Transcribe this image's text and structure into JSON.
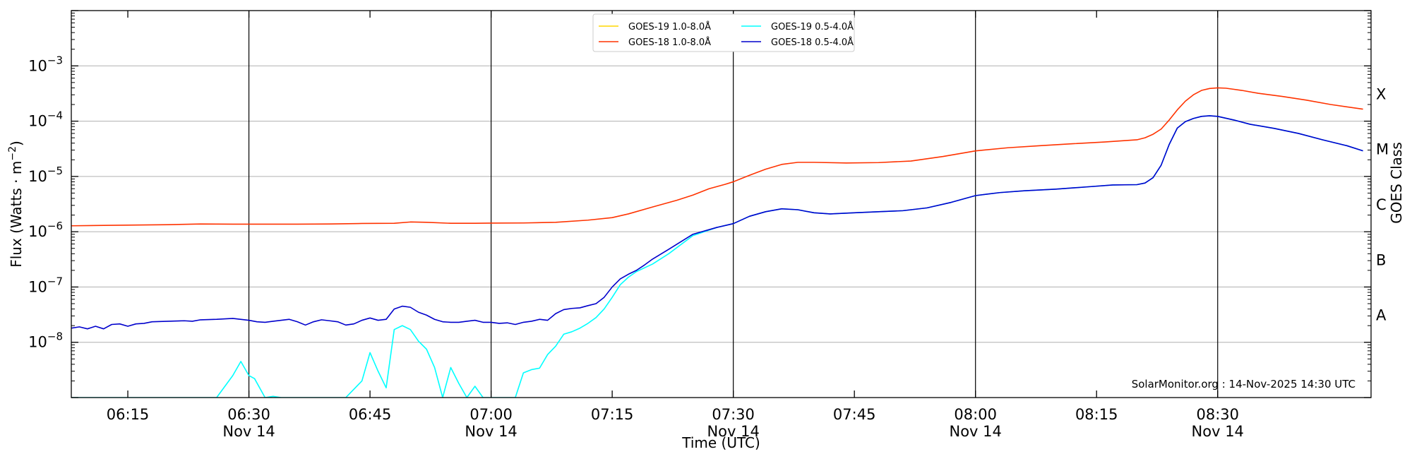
{
  "chart_data": {
    "type": "line",
    "xlabel": "Time (UTC)",
    "ylabel": "Flux (Watts · m⁻²)",
    "ylabel_parts": {
      "base": "Flux (Watts · m",
      "exp": "−2",
      "end": ")"
    },
    "y2label": "GOES Class",
    "yscale": "log",
    "xlim": [
      "06:08",
      "08:49"
    ],
    "ylim": [
      1e-09,
      0.01
    ],
    "grid": {
      "horizontal": true,
      "vertical_lines_at": [
        "06:30",
        "07:00",
        "07:30",
        "08:00",
        "08:30"
      ]
    },
    "legend_placement": "top-center",
    "credit": "SolarMonitor.org : 14-Nov-2025 14:30 UTC",
    "x_ticks": [
      {
        "t": "06:15",
        "label": "06:15",
        "sub": ""
      },
      {
        "t": "06:30",
        "label": "06:30",
        "sub": "Nov 14"
      },
      {
        "t": "06:45",
        "label": "06:45",
        "sub": ""
      },
      {
        "t": "07:00",
        "label": "07:00",
        "sub": "Nov 14"
      },
      {
        "t": "07:15",
        "label": "07:15",
        "sub": ""
      },
      {
        "t": "07:30",
        "label": "07:30",
        "sub": "Nov 14"
      },
      {
        "t": "07:45",
        "label": "07:45",
        "sub": ""
      },
      {
        "t": "08:00",
        "label": "08:00",
        "sub": "Nov 14"
      },
      {
        "t": "08:15",
        "label": "08:15",
        "sub": ""
      },
      {
        "t": "08:30",
        "label": "08:30",
        "sub": "Nov 14"
      }
    ],
    "y_ticks": [
      {
        "value": 1e-08,
        "mant": "10",
        "exp": "−8"
      },
      {
        "value": 1e-07,
        "mant": "10",
        "exp": "−7"
      },
      {
        "value": 1e-06,
        "mant": "10",
        "exp": "−6"
      },
      {
        "value": 1e-05,
        "mant": "10",
        "exp": "−5"
      },
      {
        "value": 0.0001,
        "mant": "10",
        "exp": "−4"
      },
      {
        "value": 0.001,
        "mant": "10",
        "exp": "−3"
      }
    ],
    "goes_classes": [
      {
        "label": "A",
        "value": 3.16e-08
      },
      {
        "label": "B",
        "value": 3.16e-07
      },
      {
        "label": "C",
        "value": 3.16e-06
      },
      {
        "label": "M",
        "value": 3.16e-05
      },
      {
        "label": "X",
        "value": 0.000316
      }
    ],
    "series": [
      {
        "name": "GOES-19 1.0-8.0Å",
        "color": "#FFD700",
        "points": []
      },
      {
        "name": "GOES-19 0.5-4.0Å",
        "color": "#00FFFF",
        "points": [
          [
            "06:08",
            1e-09
          ],
          [
            "06:26",
            1e-09
          ],
          [
            "06:28",
            2.5e-09
          ],
          [
            "06:29",
            4.5e-09
          ],
          [
            "06:30",
            2.5e-09
          ],
          [
            "06:30.7",
            2.2e-09
          ],
          [
            "06:32",
            1e-09
          ],
          [
            "06:33",
            1.05e-09
          ],
          [
            "06:34",
            1e-09
          ],
          [
            "06:42",
            1e-09
          ],
          [
            "06:44",
            2e-09
          ],
          [
            "06:45",
            6.5e-09
          ],
          [
            "06:46",
            3e-09
          ],
          [
            "06:47",
            1.5e-09
          ],
          [
            "06:48",
            1.7e-08
          ],
          [
            "06:49",
            2e-08
          ],
          [
            "06:50",
            1.7e-08
          ],
          [
            "06:51",
            1.05e-08
          ],
          [
            "06:52",
            7.5e-09
          ],
          [
            "06:53",
            3.5e-09
          ],
          [
            "06:54",
            1e-09
          ],
          [
            "06:55",
            3.5e-09
          ],
          [
            "06:56",
            1.8e-09
          ],
          [
            "06:57",
            1e-09
          ],
          [
            "06:58",
            1.6e-09
          ],
          [
            "06:59",
            1e-09
          ],
          [
            "07:02",
            1e-09
          ],
          [
            "07:03",
            1e-09
          ],
          [
            "07:04",
            2.8e-09
          ],
          [
            "07:05",
            3.2e-09
          ],
          [
            "07:06",
            3.4e-09
          ],
          [
            "07:07",
            6e-09
          ],
          [
            "07:08",
            8.5e-09
          ],
          [
            "07:09",
            1.4e-08
          ],
          [
            "07:10",
            1.55e-08
          ],
          [
            "07:11",
            1.8e-08
          ],
          [
            "07:12",
            2.2e-08
          ],
          [
            "07:13",
            2.8e-08
          ],
          [
            "07:14",
            4e-08
          ],
          [
            "07:15",
            6.5e-08
          ],
          [
            "07:16",
            1.1e-07
          ],
          [
            "07:17",
            1.5e-07
          ],
          [
            "07:18",
            1.9e-07
          ],
          [
            "07:20",
            2.6e-07
          ],
          [
            "07:22",
            4e-07
          ],
          [
            "07:25",
            8.5e-07
          ],
          [
            "07:28",
            1.2e-06
          ],
          [
            "07:30",
            1.4e-06
          ],
          [
            "07:32",
            1.9e-06
          ],
          [
            "07:34",
            2.3e-06
          ],
          [
            "07:36",
            2.6e-06
          ],
          [
            "07:38",
            2.5e-06
          ],
          [
            "07:40",
            2.2e-06
          ],
          [
            "07:42",
            2.1e-06
          ],
          [
            "07:45",
            2.2e-06
          ],
          [
            "07:48",
            2.3e-06
          ],
          [
            "07:51",
            2.4e-06
          ],
          [
            "07:54",
            2.7e-06
          ],
          [
            "07:57",
            3.4e-06
          ],
          [
            "08:00",
            4.5e-06
          ],
          [
            "08:03",
            5.1e-06
          ],
          [
            "08:06",
            5.5e-06
          ],
          [
            "08:10",
            5.9e-06
          ],
          [
            "08:14",
            6.5e-06
          ],
          [
            "08:17",
            7e-06
          ],
          [
            "08:20",
            7.1e-06
          ],
          [
            "08:21",
            7.6e-06
          ],
          [
            "08:22",
            9.5e-06
          ],
          [
            "08:23",
            1.6e-05
          ],
          [
            "08:24",
            3.8e-05
          ],
          [
            "08:25",
            7.5e-05
          ],
          [
            "08:26",
            9.8e-05
          ],
          [
            "08:27",
            0.000112
          ],
          [
            "08:28",
            0.000122
          ],
          [
            "08:29",
            0.000125
          ],
          [
            "08:30",
            0.000122
          ],
          [
            "08:32",
            0.000105
          ],
          [
            "08:34",
            8.8e-05
          ],
          [
            "08:37",
            7.4e-05
          ],
          [
            "08:40",
            6e-05
          ],
          [
            "08:43",
            4.6e-05
          ],
          [
            "08:46",
            3.6e-05
          ],
          [
            "08:48",
            2.9e-05
          ]
        ]
      },
      {
        "name": "GOES-18 1.0-8.0Å",
        "color": "#FF3300",
        "points": [
          [
            "06:08",
            1.28e-06
          ],
          [
            "06:12",
            1.3e-06
          ],
          [
            "06:16",
            1.32e-06
          ],
          [
            "06:20",
            1.34e-06
          ],
          [
            "06:24",
            1.38e-06
          ],
          [
            "06:28",
            1.37e-06
          ],
          [
            "06:32",
            1.37e-06
          ],
          [
            "06:36",
            1.37e-06
          ],
          [
            "06:40",
            1.38e-06
          ],
          [
            "06:44",
            1.41e-06
          ],
          [
            "06:48",
            1.42e-06
          ],
          [
            "06:50",
            1.5e-06
          ],
          [
            "06:52",
            1.48e-06
          ],
          [
            "06:55",
            1.42e-06
          ],
          [
            "06:58",
            1.42e-06
          ],
          [
            "07:00",
            1.43e-06
          ],
          [
            "07:04",
            1.44e-06
          ],
          [
            "07:08",
            1.48e-06
          ],
          [
            "07:12",
            1.62e-06
          ],
          [
            "07:15",
            1.8e-06
          ],
          [
            "07:17",
            2.1e-06
          ],
          [
            "07:20",
            2.8e-06
          ],
          [
            "07:23",
            3.7e-06
          ],
          [
            "07:25",
            4.6e-06
          ],
          [
            "07:27",
            6e-06
          ],
          [
            "07:29",
            7.2e-06
          ],
          [
            "07:30",
            8e-06
          ],
          [
            "07:32",
            1.05e-05
          ],
          [
            "07:34",
            1.35e-05
          ],
          [
            "07:36",
            1.65e-05
          ],
          [
            "07:38",
            1.8e-05
          ],
          [
            "07:40",
            1.8e-05
          ],
          [
            "07:44",
            1.75e-05
          ],
          [
            "07:48",
            1.78e-05
          ],
          [
            "07:52",
            1.9e-05
          ],
          [
            "07:56",
            2.3e-05
          ],
          [
            "08:00",
            2.9e-05
          ],
          [
            "08:04",
            3.3e-05
          ],
          [
            "08:08",
            3.6e-05
          ],
          [
            "08:12",
            3.9e-05
          ],
          [
            "08:16",
            4.2e-05
          ],
          [
            "08:20",
            4.6e-05
          ],
          [
            "08:21",
            5e-05
          ],
          [
            "08:22",
            5.8e-05
          ],
          [
            "08:23",
            7.2e-05
          ],
          [
            "08:24",
            0.000105
          ],
          [
            "08:25",
            0.00016
          ],
          [
            "08:26",
            0.00023
          ],
          [
            "08:27",
            0.0003
          ],
          [
            "08:28",
            0.00036
          ],
          [
            "08:29",
            0.00039
          ],
          [
            "08:30",
            0.0004
          ],
          [
            "08:31",
            0.000395
          ],
          [
            "08:33",
            0.00036
          ],
          [
            "08:35",
            0.00032
          ],
          [
            "08:38",
            0.00028
          ],
          [
            "08:41",
            0.00024
          ],
          [
            "08:44",
            0.0002
          ],
          [
            "08:48",
            0.000165
          ]
        ]
      },
      {
        "name": "GOES-18 0.5-4.0Å",
        "color": "#0000CC",
        "points": [
          [
            "06:08",
            1.8e-08
          ],
          [
            "06:09",
            1.9e-08
          ],
          [
            "06:10",
            1.75e-08
          ],
          [
            "06:11",
            1.95e-08
          ],
          [
            "06:12",
            1.75e-08
          ],
          [
            "06:13",
            2.1e-08
          ],
          [
            "06:14",
            2.15e-08
          ],
          [
            "06:15",
            1.95e-08
          ],
          [
            "06:16",
            2.15e-08
          ],
          [
            "06:17",
            2.2e-08
          ],
          [
            "06:18",
            2.35e-08
          ],
          [
            "06:20",
            2.4e-08
          ],
          [
            "06:22",
            2.45e-08
          ],
          [
            "06:23",
            2.4e-08
          ],
          [
            "06:24",
            2.55e-08
          ],
          [
            "06:26",
            2.6e-08
          ],
          [
            "06:28",
            2.7e-08
          ],
          [
            "06:30",
            2.5e-08
          ],
          [
            "06:31",
            2.35e-08
          ],
          [
            "06:32",
            2.3e-08
          ],
          [
            "06:33",
            2.4e-08
          ],
          [
            "06:35",
            2.6e-08
          ],
          [
            "06:36",
            2.35e-08
          ],
          [
            "06:37",
            2.05e-08
          ],
          [
            "06:38",
            2.35e-08
          ],
          [
            "06:39",
            2.55e-08
          ],
          [
            "06:40",
            2.45e-08
          ],
          [
            "06:41",
            2.35e-08
          ],
          [
            "06:42",
            2.05e-08
          ],
          [
            "06:43",
            2.15e-08
          ],
          [
            "06:44",
            2.5e-08
          ],
          [
            "06:45",
            2.75e-08
          ],
          [
            "06:46",
            2.5e-08
          ],
          [
            "06:47",
            2.6e-08
          ],
          [
            "06:48",
            4e-08
          ],
          [
            "06:49",
            4.5e-08
          ],
          [
            "06:50",
            4.3e-08
          ],
          [
            "06:51",
            3.5e-08
          ],
          [
            "06:52",
            3.1e-08
          ],
          [
            "06:53",
            2.6e-08
          ],
          [
            "06:54",
            2.35e-08
          ],
          [
            "06:55",
            2.3e-08
          ],
          [
            "06:56",
            2.3e-08
          ],
          [
            "06:57",
            2.4e-08
          ],
          [
            "06:58",
            2.5e-08
          ],
          [
            "06:59",
            2.3e-08
          ],
          [
            "07:00",
            2.3e-08
          ],
          [
            "07:01",
            2.2e-08
          ],
          [
            "07:02",
            2.25e-08
          ],
          [
            "07:03",
            2.1e-08
          ],
          [
            "07:04",
            2.3e-08
          ],
          [
            "07:05",
            2.4e-08
          ],
          [
            "07:06",
            2.6e-08
          ],
          [
            "07:07",
            2.5e-08
          ],
          [
            "07:08",
            3.3e-08
          ],
          [
            "07:09",
            3.9e-08
          ],
          [
            "07:10",
            4.1e-08
          ],
          [
            "07:11",
            4.2e-08
          ],
          [
            "07:12",
            4.6e-08
          ],
          [
            "07:13",
            5e-08
          ],
          [
            "07:14",
            6.5e-08
          ],
          [
            "07:15",
            1e-07
          ],
          [
            "07:16",
            1.4e-07
          ],
          [
            "07:17",
            1.7e-07
          ],
          [
            "07:18",
            2e-07
          ],
          [
            "07:19",
            2.5e-07
          ],
          [
            "07:20",
            3.2e-07
          ],
          [
            "07:22",
            4.8e-07
          ],
          [
            "07:25",
            9e-07
          ],
          [
            "07:28",
            1.2e-06
          ],
          [
            "07:30",
            1.4e-06
          ],
          [
            "07:32",
            1.9e-06
          ],
          [
            "07:34",
            2.3e-06
          ],
          [
            "07:36",
            2.6e-06
          ],
          [
            "07:38",
            2.5e-06
          ],
          [
            "07:40",
            2.2e-06
          ],
          [
            "07:42",
            2.1e-06
          ],
          [
            "07:45",
            2.2e-06
          ],
          [
            "07:48",
            2.3e-06
          ],
          [
            "07:51",
            2.4e-06
          ],
          [
            "07:54",
            2.7e-06
          ],
          [
            "07:57",
            3.4e-06
          ],
          [
            "08:00",
            4.5e-06
          ],
          [
            "08:03",
            5.1e-06
          ],
          [
            "08:06",
            5.5e-06
          ],
          [
            "08:10",
            5.9e-06
          ],
          [
            "08:14",
            6.5e-06
          ],
          [
            "08:17",
            7e-06
          ],
          [
            "08:20",
            7.1e-06
          ],
          [
            "08:21",
            7.6e-06
          ],
          [
            "08:22",
            9.5e-06
          ],
          [
            "08:23",
            1.6e-05
          ],
          [
            "08:24",
            3.8e-05
          ],
          [
            "08:25",
            7.5e-05
          ],
          [
            "08:26",
            9.8e-05
          ],
          [
            "08:27",
            0.000112
          ],
          [
            "08:28",
            0.000122
          ],
          [
            "08:29",
            0.000125
          ],
          [
            "08:30",
            0.000122
          ],
          [
            "08:32",
            0.000105
          ],
          [
            "08:34",
            8.8e-05
          ],
          [
            "08:37",
            7.4e-05
          ],
          [
            "08:40",
            6e-05
          ],
          [
            "08:43",
            4.6e-05
          ],
          [
            "08:46",
            3.6e-05
          ],
          [
            "08:48",
            2.9e-05
          ]
        ]
      }
    ],
    "legend_order": [
      0,
      2,
      1,
      3
    ]
  }
}
